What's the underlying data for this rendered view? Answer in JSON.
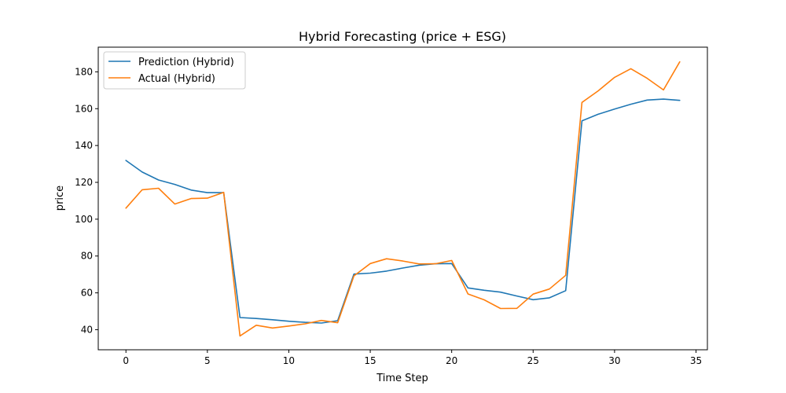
{
  "chart_data": {
    "type": "line",
    "title": "Hybrid Forecasting (price + ESG)",
    "xlabel": "Time Step",
    "ylabel": "price",
    "xlim": [
      -1.7,
      35.7
    ],
    "ylim": [
      29.1,
      193.4
    ],
    "xticks": [
      0,
      5,
      10,
      15,
      20,
      25,
      30,
      35
    ],
    "yticks": [
      40,
      60,
      80,
      100,
      120,
      140,
      160,
      180
    ],
    "grid": false,
    "legend_position": "top-left",
    "x": [
      0,
      1,
      2,
      3,
      4,
      5,
      6,
      7,
      8,
      9,
      10,
      11,
      12,
      13,
      14,
      15,
      16,
      17,
      18,
      19,
      20,
      21,
      22,
      23,
      24,
      25,
      26,
      27,
      28,
      29,
      30,
      31,
      32,
      33,
      34
    ],
    "series": [
      {
        "name": "Prediction (Hybrid)",
        "color": "#1f77b4",
        "values": [
          131.9,
          125.6,
          121.3,
          118.9,
          115.8,
          114.4,
          114.4,
          46.6,
          46.1,
          45.4,
          44.6,
          44.0,
          43.6,
          44.9,
          70.2,
          70.7,
          71.8,
          73.5,
          75.0,
          75.8,
          75.9,
          62.7,
          61.4,
          60.4,
          58.3,
          56.3,
          57.3,
          61.2,
          153.4,
          157.0,
          159.8,
          162.4,
          164.7,
          165.2,
          164.5
        ]
      },
      {
        "name": "Actual (Hybrid)",
        "color": "#ff7f0e",
        "values": [
          106.0,
          116.0,
          116.8,
          108.2,
          111.2,
          111.4,
          114.6,
          36.6,
          42.4,
          40.9,
          42.0,
          43.2,
          45.0,
          43.8,
          69.2,
          75.9,
          78.5,
          77.3,
          75.7,
          75.8,
          77.6,
          59.4,
          56.2,
          51.5,
          51.6,
          59.3,
          62.1,
          69.5,
          163.4,
          169.7,
          177.0,
          181.7,
          176.5,
          170.2,
          185.4
        ]
      }
    ]
  }
}
